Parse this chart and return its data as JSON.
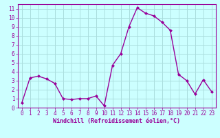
{
  "x": [
    0,
    1,
    2,
    3,
    4,
    5,
    6,
    7,
    8,
    9,
    10,
    11,
    12,
    13,
    14,
    15,
    16,
    17,
    18,
    19,
    20,
    21,
    22,
    23
  ],
  "y": [
    0.5,
    3.3,
    3.5,
    3.2,
    2.7,
    1.0,
    0.9,
    1.0,
    1.0,
    1.3,
    0.2,
    4.7,
    6.0,
    9.0,
    11.1,
    10.5,
    10.2,
    9.5,
    8.6,
    3.7,
    3.0,
    1.5,
    3.1,
    1.8
  ],
  "line_color": "#990099",
  "marker": "D",
  "marker_size": 2.0,
  "linewidth": 1.0,
  "bg_color": "#ccffff",
  "grid_color": "#aadddd",
  "xlabel": "Windchill (Refroidissement éolien,°C)",
  "xlabel_fontsize": 6.0,
  "tick_fontsize": 5.5,
  "xlim": [
    -0.5,
    23.5
  ],
  "ylim": [
    0,
    11.5
  ],
  "yticks": [
    0,
    1,
    2,
    3,
    4,
    5,
    6,
    7,
    8,
    9,
    10,
    11
  ],
  "xticks": [
    0,
    1,
    2,
    3,
    4,
    5,
    6,
    7,
    8,
    9,
    10,
    11,
    12,
    13,
    14,
    15,
    16,
    17,
    18,
    19,
    20,
    21,
    22,
    23
  ]
}
